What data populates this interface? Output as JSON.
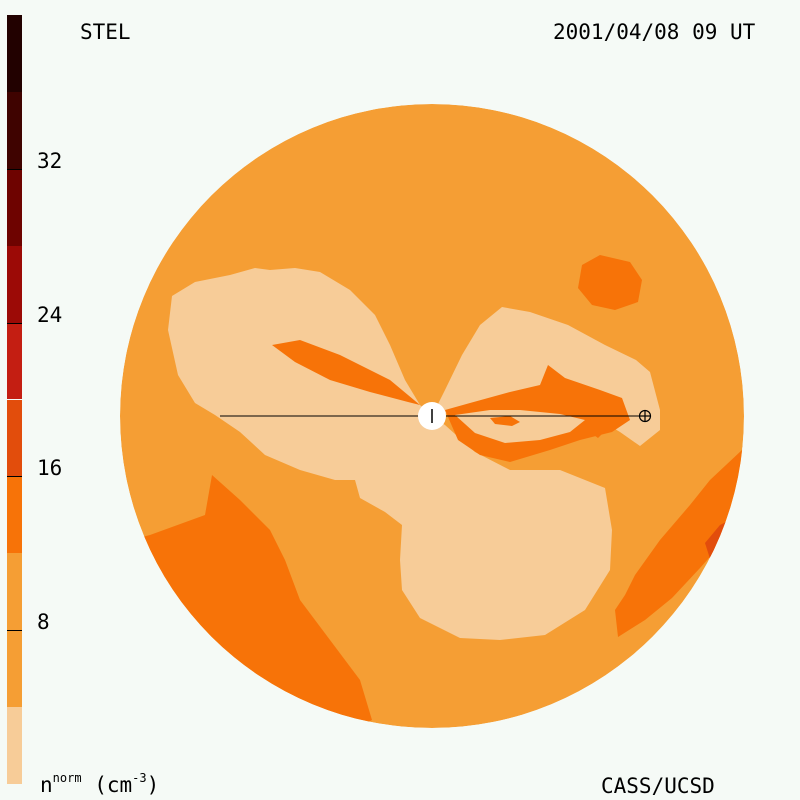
{
  "header": {
    "instrument": "STEL",
    "datetime": "2001/04/08 09 UT"
  },
  "footer": {
    "credit": "CASS/UCSD"
  },
  "colorbar": {
    "unit_symbol": "n",
    "unit_sup": "norm",
    "unit_paren_open": " (cm",
    "unit_power": "-3",
    "unit_paren_close": ")",
    "range": [
      0,
      40
    ],
    "tick_values": [
      8,
      16,
      24,
      32
    ],
    "tick_labels": [
      "8",
      "16",
      "24",
      "32"
    ],
    "levels": [
      {
        "from": 0,
        "to": 4,
        "color": "#f7cc98"
      },
      {
        "from": 4,
        "to": 12,
        "color": "#f59e34"
      },
      {
        "from": 12,
        "to": 16,
        "color": "#f77308"
      },
      {
        "from": 16,
        "to": 20,
        "color": "#e24d0c"
      },
      {
        "from": 20,
        "to": 24,
        "color": "#c41e12"
      },
      {
        "from": 24,
        "to": 28,
        "color": "#9c0a06"
      },
      {
        "from": 28,
        "to": 32,
        "color": "#6e0300"
      },
      {
        "from": 32,
        "to": 36,
        "color": "#3f0300"
      },
      {
        "from": 36,
        "to": 40,
        "color": "#220100"
      }
    ]
  },
  "map": {
    "center_symbol": "sun",
    "earth_symbol": "earth",
    "colors": {
      "background": "#f59e34",
      "low": "#f7cc98",
      "mid": "#f77308",
      "high": "#e24d0c"
    }
  }
}
